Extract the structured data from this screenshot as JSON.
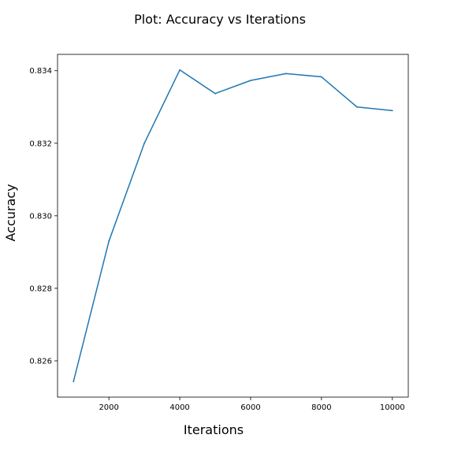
{
  "chart_data": {
    "type": "line",
    "title": "Plot: Accuracy vs Iterations",
    "xlabel": "Iterations",
    "ylabel": "Accuracy",
    "xlim": [
      550,
      10450
    ],
    "ylim": [
      0.825,
      0.83445
    ],
    "x_ticks": [
      2000,
      4000,
      6000,
      8000,
      10000
    ],
    "x_tick_labels": [
      "2000",
      "4000",
      "6000",
      "8000",
      "10000"
    ],
    "y_ticks": [
      0.826,
      0.828,
      0.83,
      0.832,
      0.834
    ],
    "y_tick_labels": [
      "0.826",
      "0.828",
      "0.830",
      "0.832",
      "0.834"
    ],
    "grid": false,
    "series": [
      {
        "x": [
          1000,
          2000,
          3000,
          4000,
          5000,
          6000,
          7000,
          8000,
          9000,
          10000
        ],
        "values": [
          0.82543,
          0.8293,
          0.832,
          0.83402,
          0.83337,
          0.83373,
          0.83392,
          0.83383,
          0.833,
          0.8329
        ],
        "color": "#1f77b4"
      }
    ]
  }
}
